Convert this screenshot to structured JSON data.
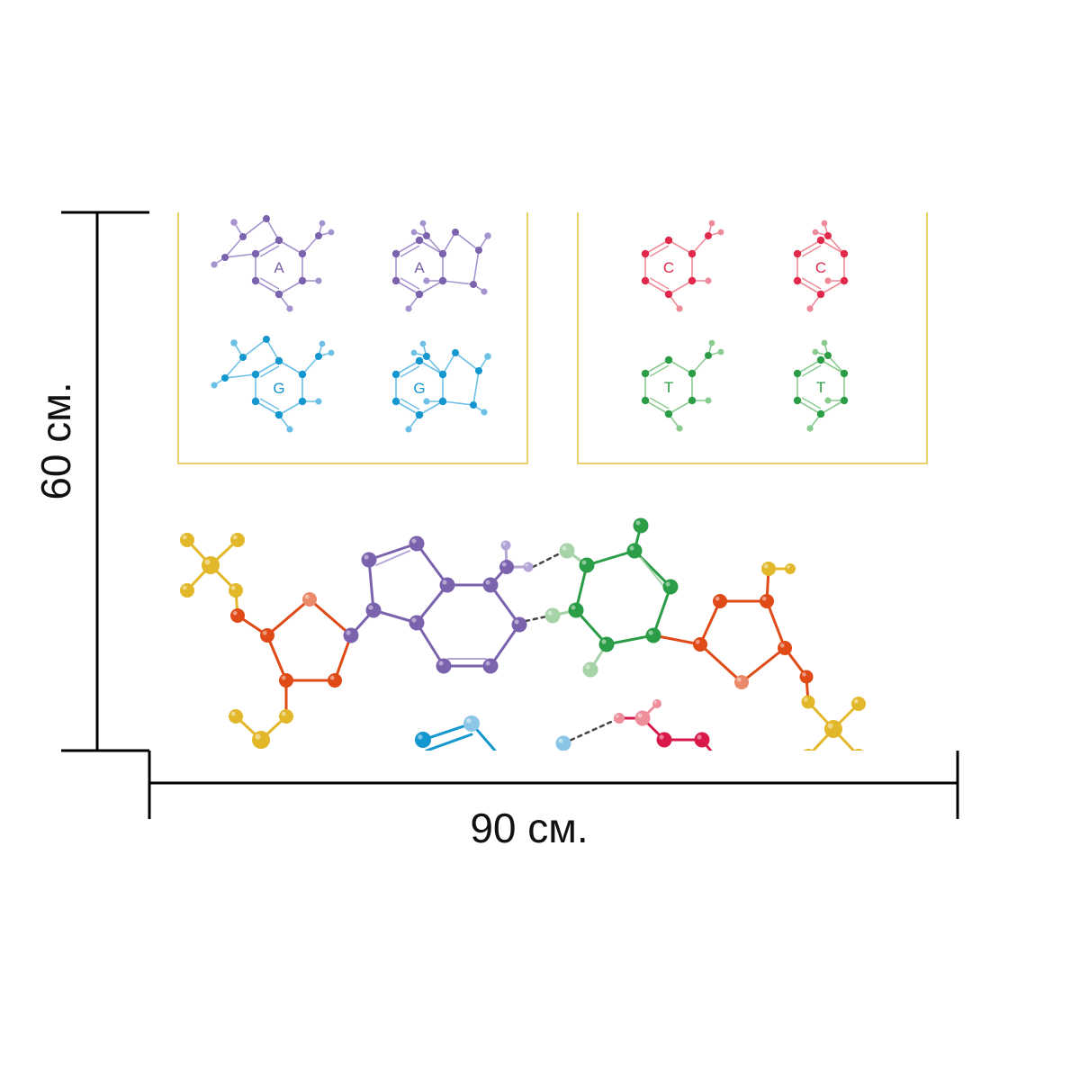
{
  "dimensions": {
    "height_label": "60 см.",
    "width_label": "90 см."
  },
  "panels": [
    {
      "frame_color": "#e6c23a",
      "bases": [
        {
          "letter": "A",
          "color": "#7b62ad",
          "light": "#a593cf"
        },
        {
          "letter": "A",
          "color": "#7b62ad",
          "light": "#a593cf"
        },
        {
          "letter": "G",
          "color": "#1496cf",
          "light": "#6cc0e6"
        },
        {
          "letter": "G",
          "color": "#1496cf",
          "light": "#6cc0e6"
        }
      ]
    },
    {
      "frame_color": "#e6c23a",
      "bases": [
        {
          "letter": "C",
          "color": "#e1294b",
          "light": "#ef8a98"
        },
        {
          "letter": "C",
          "color": "#e1294b",
          "light": "#ef8a98"
        },
        {
          "letter": "T",
          "color": "#2a9d46",
          "light": "#8acb8f"
        },
        {
          "letter": "T",
          "color": "#2a9d46",
          "light": "#8acb8f"
        }
      ]
    }
  ],
  "colors": {
    "phosphate": "#e2b82a",
    "sugar": "#df4a17",
    "sugar_light": "#ea8a6a",
    "adenine": "#7b62ad",
    "adenine_light": "#b3a6d6",
    "thymine": "#2a9d46",
    "thymine_light": "#a6d3a8",
    "guanine": "#1496cf",
    "guanine_light": "#8cc6e6",
    "cytosine": "#d9194a",
    "cytosine_light": "#ee8e9a",
    "dimension_line": "#000000"
  }
}
